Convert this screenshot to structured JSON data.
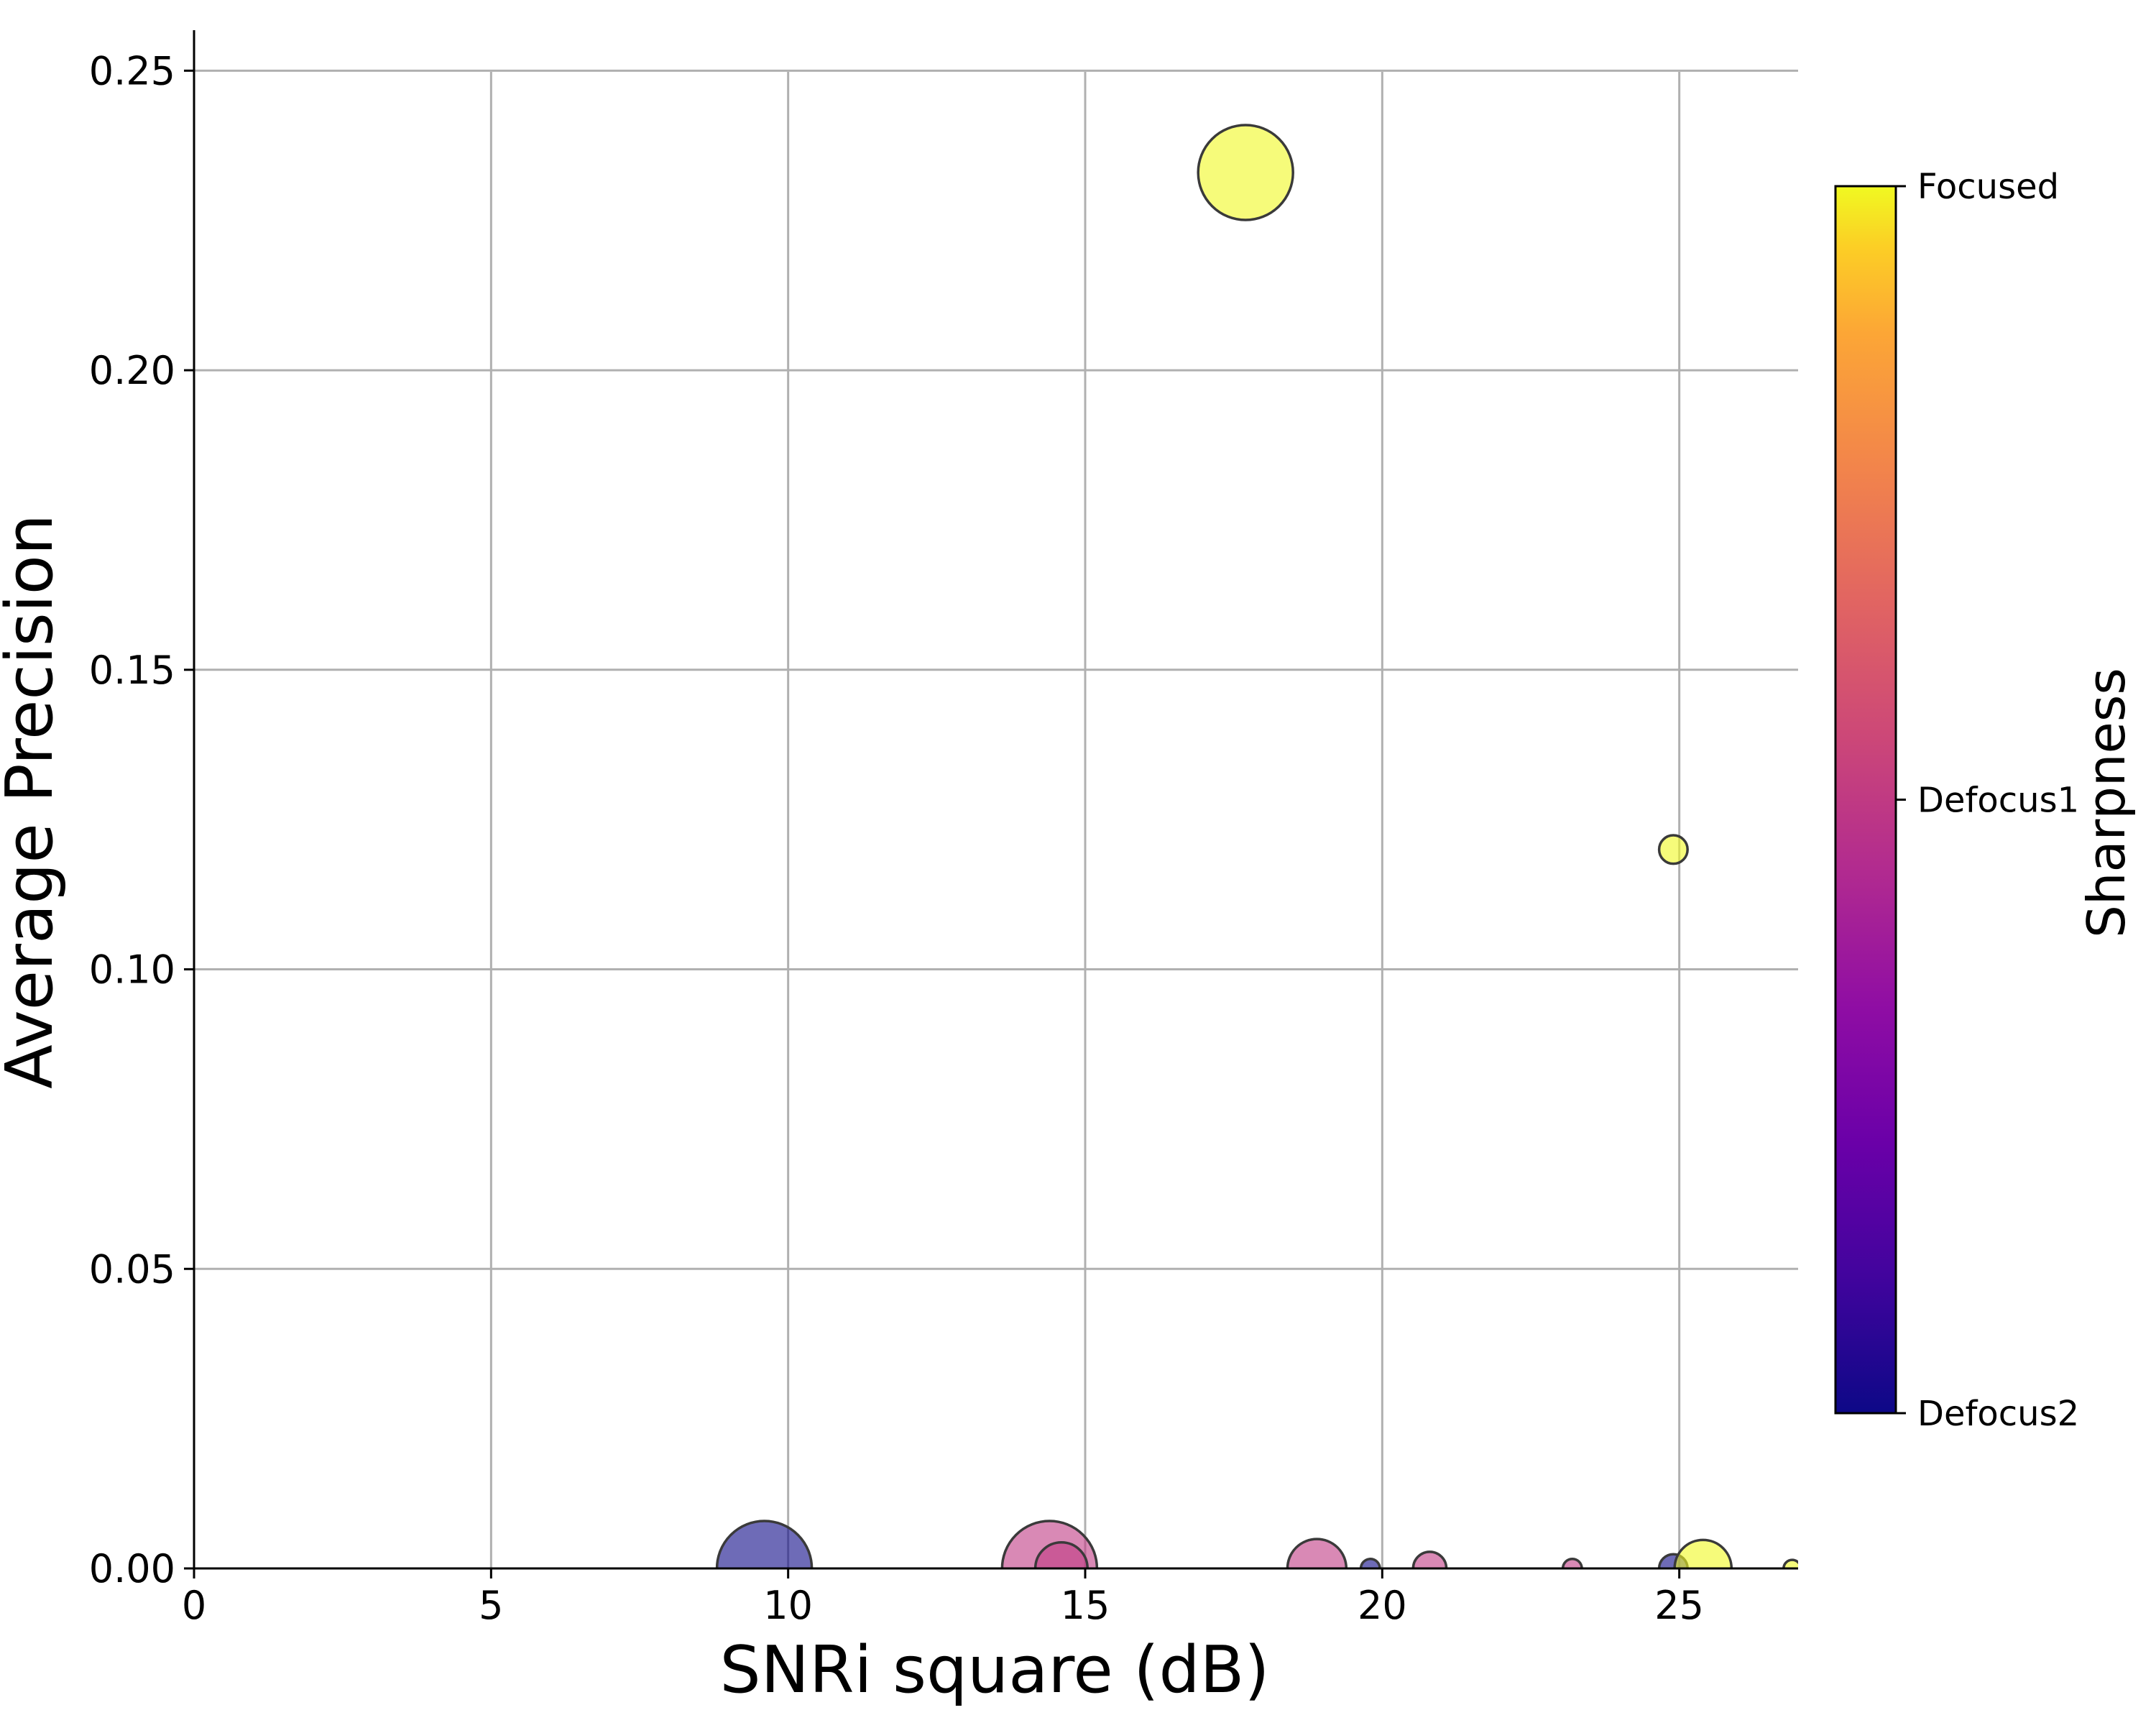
{
  "chart_data": {
    "type": "scatter",
    "title": "",
    "xlabel": "SNRi square (dB)",
    "ylabel": "Average Precision",
    "xlim": [
      0,
      27
    ],
    "ylim": [
      0,
      0.257
    ],
    "xticks": [
      0,
      5,
      10,
      15,
      20,
      25
    ],
    "xtick_labels": [
      "0",
      "5",
      "10",
      "15",
      "20",
      "25"
    ],
    "yticks": [
      0.0,
      0.05,
      0.1,
      0.15,
      0.2,
      0.25
    ],
    "ytick_labels": [
      "0.00",
      "0.05",
      "0.10",
      "0.15",
      "0.20",
      "0.25"
    ],
    "grid": true,
    "colorbar": {
      "label": "Sharpness",
      "colormap": "plasma",
      "ticks": [
        "Focused",
        "Defocus1",
        "Defocus2"
      ],
      "tick_values": [
        1.0,
        0.5,
        0.0
      ]
    },
    "points": [
      {
        "x": 17.7,
        "y": 0.233,
        "sharpness": 1.0,
        "size": 1.0
      },
      {
        "x": 24.9,
        "y": 0.12,
        "sharpness": 1.0,
        "size": 0.3
      },
      {
        "x": 9.6,
        "y": 0.0,
        "sharpness": 0.0,
        "size": 1.0
      },
      {
        "x": 14.4,
        "y": 0.0,
        "sharpness": 0.5,
        "size": 1.0
      },
      {
        "x": 14.6,
        "y": 0.0,
        "sharpness": 0.5,
        "size": 0.55
      },
      {
        "x": 18.9,
        "y": 0.0,
        "sharpness": 0.5,
        "size": 0.62
      },
      {
        "x": 19.8,
        "y": 0.0,
        "sharpness": 0.0,
        "size": 0.2
      },
      {
        "x": 20.8,
        "y": 0.0,
        "sharpness": 0.5,
        "size": 0.35
      },
      {
        "x": 23.2,
        "y": 0.0,
        "sharpness": 0.5,
        "size": 0.2
      },
      {
        "x": 24.9,
        "y": 0.0,
        "sharpness": 0.0,
        "size": 0.3
      },
      {
        "x": 25.4,
        "y": 0.0,
        "sharpness": 1.0,
        "size": 0.6
      },
      {
        "x": 26.9,
        "y": 0.0,
        "sharpness": 1.0,
        "size": 0.18
      }
    ]
  },
  "colors": {
    "focused": "#f0f921",
    "defocus1": "#cc4778",
    "defocus2": "#0d0887",
    "grid": "#b0b0b0",
    "marker_edge": "#3a3a3a"
  }
}
